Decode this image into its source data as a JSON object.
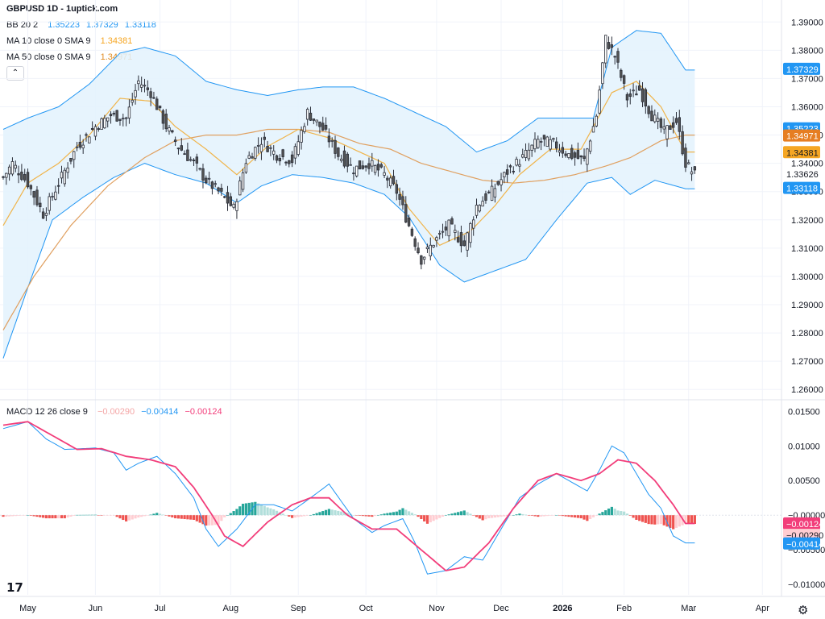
{
  "header": {
    "title": "GBPUSD 1D - 1uptick.com",
    "bb": {
      "name": "BB 20 2",
      "values": [
        "1.35223",
        "1.37329",
        "1.33118"
      ],
      "color": "#2196f3"
    },
    "ma10": {
      "name": "MA 10 close 0 SMA 9",
      "value": "1.34381",
      "color": "#f5a623"
    },
    "ma50": {
      "name": "MA 50 close 0 SMA 9",
      "value": "1.34971",
      "color": "#e08a1e"
    },
    "collapse_icon": "chevron-up-icon"
  },
  "macd_legend": {
    "name": "MACD 12 26 close 9",
    "hist": "−0.00290",
    "macd": "−0.00414",
    "signal": "−0.00124",
    "hist_color": "#f4a6a6",
    "macd_color": "#2196f3",
    "signal_color": "#f23d7a"
  },
  "footer": {
    "logo_icon": "tradingview-logo-icon",
    "logo_text": "17",
    "settings_icon": "gear-icon"
  },
  "colors": {
    "bb_fill": "#e3f2fd",
    "bb_line": "#2196f3",
    "ma10": "#f0b44a",
    "ma50": "#e0a060",
    "candle_up": "#ffffff",
    "candle_down": "#555555",
    "candle_border": "#2a2e39",
    "macd": "#2196f3",
    "signal": "#f23d7a",
    "hist_up_strong": "#26a69a",
    "hist_up_weak": "#b2dfdb",
    "hist_down_strong": "#ef5350",
    "hist_down_weak": "#ffcdd2"
  },
  "chart_data": [
    {
      "type": "candlestick",
      "title": "GBPUSD 1D",
      "x_ticks": [
        "May",
        "Jun",
        "Jul",
        "Aug",
        "Sep",
        "Oct",
        "Nov",
        "Dec",
        "2026",
        "Feb",
        "Mar",
        "Apr"
      ],
      "y_ticks": [
        "1.39000",
        "1.38000",
        "1.37000",
        "1.36000",
        "1.35000",
        "1.34000",
        "1.33000",
        "1.32000",
        "1.31000",
        "1.30000",
        "1.29000",
        "1.28000",
        "1.27000",
        "1.26000"
      ],
      "ylim": [
        1.2575,
        1.3915
      ],
      "grid": true,
      "price_labels": [
        {
          "text": "1.37329",
          "value": 1.37329,
          "bg": "#2196f3",
          "fg": "#ffffff"
        },
        {
          "text": "1.35223",
          "value": 1.35223,
          "bg": "#2196f3",
          "fg": "#ffffff"
        },
        {
          "text": "1.34971",
          "value": 1.34971,
          "bg": "#e67e22",
          "fg": "#ffffff"
        },
        {
          "text": "1.34381",
          "value": 1.34381,
          "bg": "#f5a623",
          "fg": "#131722"
        },
        {
          "text": "1.33626",
          "value": 1.33626,
          "bg": "#ffffff",
          "fg": "#131722"
        },
        {
          "text": "1.33118",
          "value": 1.33118,
          "bg": "#2196f3",
          "fg": "#ffffff"
        }
      ],
      "close_anchors": [
        [
          0,
          1.335
        ],
        [
          3,
          1.34
        ],
        [
          8,
          1.333
        ],
        [
          13,
          1.322
        ],
        [
          18,
          1.333
        ],
        [
          24,
          1.346
        ],
        [
          30,
          1.353
        ],
        [
          35,
          1.357
        ],
        [
          40,
          1.356
        ],
        [
          44,
          1.369
        ],
        [
          48,
          1.365
        ],
        [
          53,
          1.353
        ],
        [
          57,
          1.346
        ],
        [
          62,
          1.34
        ],
        [
          66,
          1.334
        ],
        [
          70,
          1.33
        ],
        [
          75,
          1.324
        ],
        [
          79,
          1.341
        ],
        [
          84,
          1.348
        ],
        [
          89,
          1.343
        ],
        [
          94,
          1.341
        ],
        [
          99,
          1.358
        ],
        [
          104,
          1.352
        ],
        [
          109,
          1.343
        ],
        [
          114,
          1.338
        ],
        [
          119,
          1.34
        ],
        [
          124,
          1.336
        ],
        [
          128,
          1.33
        ],
        [
          132,
          1.318
        ],
        [
          136,
          1.306
        ],
        [
          140,
          1.312
        ],
        [
          145,
          1.318
        ],
        [
          150,
          1.311
        ],
        [
          154,
          1.325
        ],
        [
          159,
          1.33
        ],
        [
          164,
          1.337
        ],
        [
          169,
          1.342
        ],
        [
          174,
          1.348
        ],
        [
          179,
          1.347
        ],
        [
          184,
          1.343
        ],
        [
          189,
          1.341
        ],
        [
          193,
          1.357
        ],
        [
          196,
          1.384
        ],
        [
          199,
          1.378
        ],
        [
          203,
          1.363
        ],
        [
          207,
          1.366
        ],
        [
          211,
          1.357
        ],
        [
          215,
          1.351
        ],
        [
          219,
          1.355
        ],
        [
          222,
          1.34
        ],
        [
          225,
          1.336
        ]
      ],
      "bb_upper": [
        [
          0,
          1.352
        ],
        [
          8,
          1.356
        ],
        [
          18,
          1.36
        ],
        [
          28,
          1.368
        ],
        [
          38,
          1.379
        ],
        [
          46,
          1.381
        ],
        [
          56,
          1.378
        ],
        [
          66,
          1.369
        ],
        [
          76,
          1.366
        ],
        [
          86,
          1.364
        ],
        [
          96,
          1.366
        ],
        [
          104,
          1.367
        ],
        [
          114,
          1.367
        ],
        [
          124,
          1.363
        ],
        [
          134,
          1.358
        ],
        [
          144,
          1.353
        ],
        [
          154,
          1.344
        ],
        [
          164,
          1.348
        ],
        [
          174,
          1.356
        ],
        [
          184,
          1.356
        ],
        [
          192,
          1.356
        ],
        [
          198,
          1.381
        ],
        [
          206,
          1.387
        ],
        [
          214,
          1.386
        ],
        [
          222,
          1.373
        ]
      ],
      "bb_lower": [
        [
          0,
          1.271
        ],
        [
          8,
          1.296
        ],
        [
          16,
          1.32
        ],
        [
          26,
          1.328
        ],
        [
          36,
          1.335
        ],
        [
          46,
          1.34
        ],
        [
          56,
          1.336
        ],
        [
          66,
          1.333
        ],
        [
          76,
          1.326
        ],
        [
          84,
          1.332
        ],
        [
          94,
          1.336
        ],
        [
          104,
          1.335
        ],
        [
          114,
          1.333
        ],
        [
          124,
          1.329
        ],
        [
          132,
          1.321
        ],
        [
          142,
          1.304
        ],
        [
          150,
          1.298
        ],
        [
          160,
          1.302
        ],
        [
          170,
          1.306
        ],
        [
          180,
          1.32
        ],
        [
          190,
          1.333
        ],
        [
          198,
          1.335
        ],
        [
          204,
          1.329
        ],
        [
          212,
          1.334
        ],
        [
          222,
          1.331
        ]
      ],
      "ma10": [
        [
          0,
          1.318
        ],
        [
          8,
          1.333
        ],
        [
          18,
          1.34
        ],
        [
          28,
          1.35
        ],
        [
          38,
          1.363
        ],
        [
          48,
          1.362
        ],
        [
          56,
          1.353
        ],
        [
          66,
          1.345
        ],
        [
          76,
          1.336
        ],
        [
          86,
          1.346
        ],
        [
          96,
          1.352
        ],
        [
          106,
          1.349
        ],
        [
          114,
          1.345
        ],
        [
          124,
          1.34
        ],
        [
          132,
          1.324
        ],
        [
          142,
          1.311
        ],
        [
          152,
          1.316
        ],
        [
          160,
          1.325
        ],
        [
          168,
          1.336
        ],
        [
          178,
          1.345
        ],
        [
          188,
          1.345
        ],
        [
          198,
          1.365
        ],
        [
          206,
          1.369
        ],
        [
          214,
          1.36
        ],
        [
          222,
          1.344
        ]
      ],
      "ma50": [
        [
          0,
          1.281
        ],
        [
          10,
          1.3
        ],
        [
          22,
          1.318
        ],
        [
          34,
          1.332
        ],
        [
          46,
          1.342
        ],
        [
          56,
          1.348
        ],
        [
          66,
          1.35
        ],
        [
          76,
          1.35
        ],
        [
          86,
          1.352
        ],
        [
          96,
          1.352
        ],
        [
          106,
          1.351
        ],
        [
          116,
          1.347
        ],
        [
          126,
          1.345
        ],
        [
          136,
          1.34
        ],
        [
          146,
          1.337
        ],
        [
          156,
          1.334
        ],
        [
          166,
          1.333
        ],
        [
          176,
          1.334
        ],
        [
          186,
          1.336
        ],
        [
          196,
          1.339
        ],
        [
          204,
          1.342
        ],
        [
          214,
          1.348
        ],
        [
          222,
          1.35
        ]
      ]
    },
    {
      "type": "line",
      "title": "MACD 12 26 close 9",
      "y_ticks": [
        "0.01500",
        "0.01000",
        "0.00500",
        "−0.00000",
        "−0.00500",
        "−0.01000"
      ],
      "ylim": [
        -0.0115,
        0.0162
      ],
      "price_labels": [
        {
          "text": "−0.00124",
          "value": -0.00124,
          "bg": "#f23d7a",
          "fg": "#ffffff"
        },
        {
          "text": "−0.00290",
          "value": -0.0029,
          "bg": "#ffcdd2",
          "fg": "#131722"
        },
        {
          "text": "−0.00414",
          "value": -0.00414,
          "bg": "#2196f3",
          "fg": "#ffffff"
        }
      ],
      "series": [
        {
          "key": "macd",
          "anchors": [
            [
              0,
              0.0125
            ],
            [
              8,
              0.0135
            ],
            [
              14,
              0.011
            ],
            [
              20,
              0.0095
            ],
            [
              30,
              0.0097
            ],
            [
              36,
              0.009
            ],
            [
              40,
              0.0065
            ],
            [
              44,
              0.0075
            ],
            [
              50,
              0.0085
            ],
            [
              56,
              0.006
            ],
            [
              62,
              0.0025
            ],
            [
              66,
              -0.002
            ],
            [
              70,
              -0.0045
            ],
            [
              76,
              -0.002
            ],
            [
              82,
              0.0015
            ],
            [
              88,
              0.0015
            ],
            [
              94,
              0.0006
            ],
            [
              100,
              0.0025
            ],
            [
              106,
              0.0045
            ],
            [
              110,
              0.002
            ],
            [
              114,
              -0.0005
            ],
            [
              120,
              -0.0025
            ],
            [
              124,
              -0.0015
            ],
            [
              130,
              -0.0005
            ],
            [
              134,
              -0.004
            ],
            [
              138,
              -0.0085
            ],
            [
              144,
              -0.008
            ],
            [
              150,
              -0.006
            ],
            [
              156,
              -0.0065
            ],
            [
              162,
              -0.002
            ],
            [
              168,
              0.0025
            ],
            [
              174,
              0.0045
            ],
            [
              180,
              0.006
            ],
            [
              186,
              0.0045
            ],
            [
              190,
              0.0035
            ],
            [
              194,
              0.0065
            ],
            [
              198,
              0.01
            ],
            [
              202,
              0.009
            ],
            [
              206,
              0.006
            ],
            [
              210,
              0.003
            ],
            [
              214,
              0.001
            ],
            [
              218,
              -0.003
            ],
            [
              222,
              -0.004
            ]
          ]
        },
        {
          "key": "signal",
          "anchors": [
            [
              0,
              0.013
            ],
            [
              8,
              0.0135
            ],
            [
              16,
              0.0115
            ],
            [
              24,
              0.0095
            ],
            [
              32,
              0.0096
            ],
            [
              40,
              0.0085
            ],
            [
              48,
              0.008
            ],
            [
              56,
              0.007
            ],
            [
              62,
              0.004
            ],
            [
              68,
              0.0
            ],
            [
              72,
              -0.003
            ],
            [
              78,
              -0.0045
            ],
            [
              86,
              -0.001
            ],
            [
              94,
              0.0015
            ],
            [
              100,
              0.0025
            ],
            [
              106,
              0.0025
            ],
            [
              112,
              0.0
            ],
            [
              120,
              -0.002
            ],
            [
              128,
              -0.002
            ],
            [
              136,
              -0.005
            ],
            [
              144,
              -0.008
            ],
            [
              150,
              -0.0075
            ],
            [
              158,
              -0.004
            ],
            [
              166,
              0.001
            ],
            [
              174,
              0.005
            ],
            [
              180,
              0.006
            ],
            [
              188,
              0.005
            ],
            [
              194,
              0.006
            ],
            [
              200,
              0.008
            ],
            [
              206,
              0.0075
            ],
            [
              212,
              0.005
            ],
            [
              218,
              0.0015
            ],
            [
              222,
              -0.0012
            ]
          ]
        }
      ],
      "histogram_note": "histogram = macd - signal (shown as bars)"
    }
  ]
}
